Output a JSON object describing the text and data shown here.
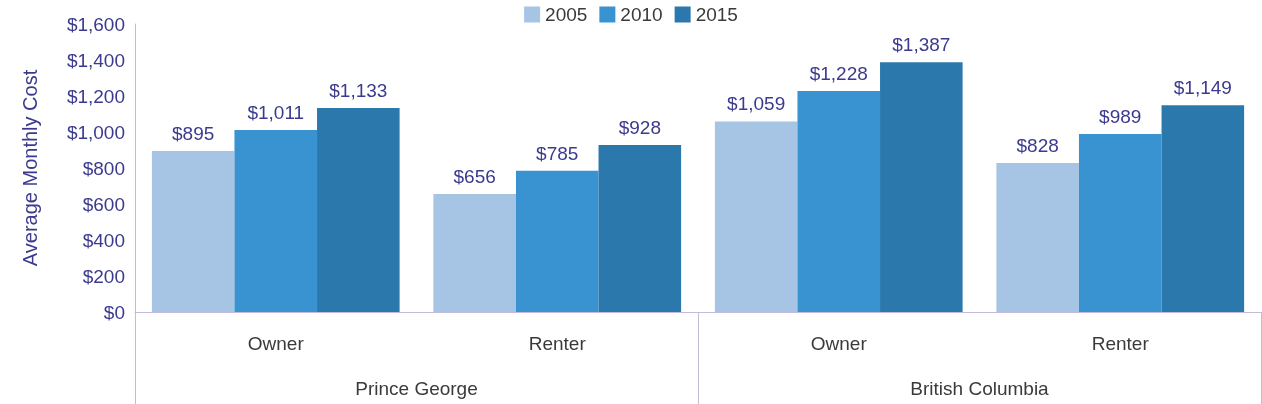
{
  "chart_data": {
    "type": "bar",
    "ylabel": "Average Monthly Cost",
    "categories": [
      "Owner",
      "Renter",
      "Owner",
      "Renter"
    ],
    "annotations": [
      "Prince George",
      "British Columbia"
    ],
    "series": [
      {
        "name": "2005",
        "color": "#a6c4e4",
        "values": [
          895,
          656,
          1059,
          828
        ],
        "value_labels": [
          "$895",
          "$656",
          "$1,059",
          "$828"
        ]
      },
      {
        "name": "2010",
        "color": "#3a93d1",
        "values": [
          1011,
          785,
          1228,
          989
        ],
        "value_labels": [
          "$1,011",
          "$785",
          "$1,228",
          "$989"
        ]
      },
      {
        "name": "2015",
        "color": "#2b78ad",
        "values": [
          1133,
          928,
          1387,
          1149
        ],
        "value_labels": [
          "$1,133",
          "$928",
          "$1,387",
          "$1,149"
        ]
      }
    ],
    "ylim": [
      0,
      1600
    ],
    "yticks": [
      {
        "value": 0,
        "label": "$0"
      },
      {
        "value": 200,
        "label": "$200"
      },
      {
        "value": 400,
        "label": "$400"
      },
      {
        "value": 600,
        "label": "$600"
      },
      {
        "value": 800,
        "label": "$800"
      },
      {
        "value": 1000,
        "label": "$1,000"
      },
      {
        "value": 1200,
        "label": "$1,200"
      },
      {
        "value": 1400,
        "label": "$1,400"
      },
      {
        "value": 1600,
        "label": "$1,600"
      }
    ],
    "grid": false,
    "legend": "top"
  }
}
